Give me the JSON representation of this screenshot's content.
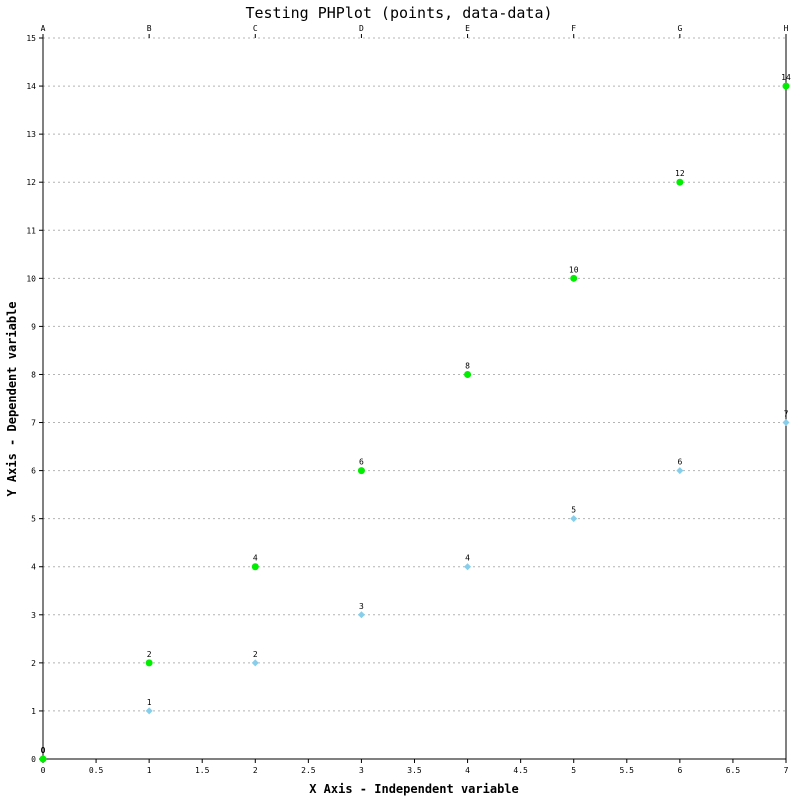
{
  "chart_data": {
    "type": "scatter",
    "title": "Testing PHPlot (points, data-data)",
    "xlabel": "X Axis - Independent variable",
    "ylabel": "Y Axis - Dependent variable",
    "xlim": [
      0,
      7
    ],
    "ylim": [
      0,
      15
    ],
    "x_ticks": [
      "0",
      "0.5",
      "1",
      "1.5",
      "2",
      "2.5",
      "3",
      "3.5",
      "4",
      "4.5",
      "5",
      "5.5",
      "6",
      "6.5",
      "7"
    ],
    "y_ticks": [
      "0",
      "1",
      "2",
      "3",
      "4",
      "5",
      "6",
      "7",
      "8",
      "9",
      "10",
      "11",
      "12",
      "13",
      "14",
      "15"
    ],
    "top_labels": [
      "A",
      "B",
      "C",
      "D",
      "E",
      "F",
      "G",
      "H"
    ],
    "grid": "horizontal dashed",
    "series": [
      {
        "color": "#87ceeb",
        "marker": "diamond",
        "x": [
          0,
          1,
          2,
          3,
          4,
          5,
          6,
          7
        ],
        "y": [
          0,
          1,
          2,
          3,
          4,
          5,
          6,
          7
        ],
        "labels": [
          "0",
          "1",
          "2",
          "3",
          "4",
          "5",
          "6",
          "7"
        ]
      },
      {
        "color": "#00ee00",
        "marker": "circle",
        "x": [
          0,
          1,
          2,
          3,
          4,
          5,
          6,
          7
        ],
        "y": [
          0,
          2,
          4,
          6,
          8,
          10,
          12,
          14
        ],
        "labels": [
          "0",
          "2",
          "4",
          "6",
          "8",
          "10",
          "12",
          "14"
        ]
      }
    ]
  }
}
